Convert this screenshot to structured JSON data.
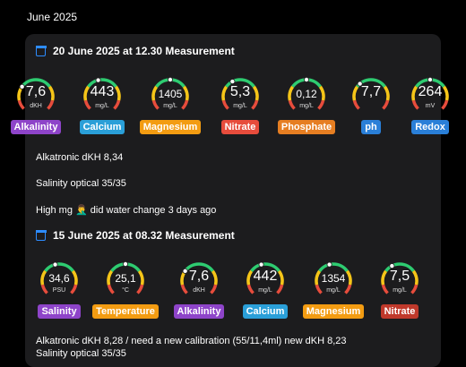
{
  "month_label": "June 2025",
  "measurements": [
    {
      "title": "20 June 2025 at 12.30  Measurement",
      "gauges": [
        {
          "value": "7,6",
          "unit": "dKH",
          "label": "Alkalinity",
          "color": "#8e44c9",
          "level": 0.3
        },
        {
          "value": "443",
          "unit": "mg/L",
          "label": "Calcium",
          "color": "#2a9fd8",
          "level": 0.45
        },
        {
          "value": "1405",
          "unit": "mg/L",
          "label": "Magnesium",
          "color": "#f39c12",
          "level": 0.5
        },
        {
          "value": "5,3",
          "unit": "mg/L",
          "label": "Nitrate",
          "color": "#e74c3c",
          "level": 0.4
        },
        {
          "value": "0,12",
          "unit": "mg/L",
          "label": "Phosphate",
          "color": "#e67e22",
          "level": 0.5
        },
        {
          "value": "7,7",
          "unit": "",
          "label": "ph",
          "color": "#2a7fd8",
          "level": 0.35
        },
        {
          "value": "264",
          "unit": "mV",
          "label": "Redox",
          "color": "#2a7fd8",
          "level": 0.5
        }
      ],
      "notes": [
        "Alkatronic dKH 8,34",
        "Salinity optical 35/35",
        "High mg 🤦‍♂️ did water change 3 days ago"
      ]
    },
    {
      "title": "15 June 2025 at 08.32  Measurement",
      "gauges": [
        {
          "value": "34,6",
          "unit": "PSU",
          "label": "Salinity",
          "color": "#8e44c9",
          "level": 0.45
        },
        {
          "value": "25,1",
          "unit": "°C",
          "label": "Temperature",
          "color": "#f39c12",
          "level": 0.5
        },
        {
          "value": "7,6",
          "unit": "dKH",
          "label": "Alkalinity",
          "color": "#8e44c9",
          "level": 0.3
        },
        {
          "value": "442",
          "unit": "mg/L",
          "label": "Calcium",
          "color": "#2a9fd8",
          "level": 0.45
        },
        {
          "value": "1354",
          "unit": "mg/L",
          "label": "Magnesium",
          "color": "#f39c12",
          "level": 0.45
        },
        {
          "value": "7,5",
          "unit": "mg/L",
          "label": "Nitrate",
          "color": "#c0392b",
          "level": 0.4
        }
      ],
      "notes": [
        "Alkatronic dKH 8,28 / need a new calibration  (55/11,4ml) new dKH 8,23",
        "Salinity optical 35/35"
      ]
    }
  ]
}
